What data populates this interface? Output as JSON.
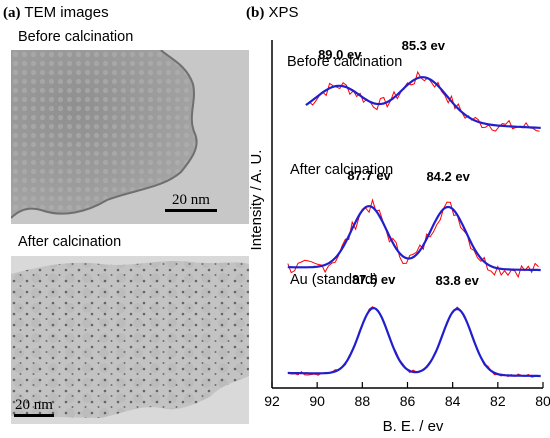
{
  "panel_a": {
    "letter": "(a)",
    "title": "TEM images",
    "top_label": "Before calcination",
    "bottom_label": "After calcination",
    "scalebar_top": "20 nm",
    "scalebar_bottom": "20 nm"
  },
  "panel_b": {
    "letter": "(b)",
    "title": "XPS"
  },
  "chart_data": {
    "type": "line",
    "xlabel": "B. E. / ev",
    "ylabel": "Intensity / A. U.",
    "xlim": [
      92,
      80
    ],
    "x_reversed": true,
    "xticks": [
      92,
      90,
      88,
      86,
      84,
      82,
      80
    ],
    "y_ticks_shown": false,
    "grid": false,
    "colors": {
      "measured": "#ff0000",
      "fit": "#1f1fd0"
    },
    "spectra": [
      {
        "label": "Before calcination",
        "peaks": [
          {
            "x": 89.0,
            "label": "89.0 ev"
          },
          {
            "x": 85.3,
            "label": "85.3 ev"
          }
        ],
        "baseline": 0.4,
        "amplitudes": [
          0.72,
          1.0
        ],
        "width": 1.05,
        "noise": 0.14
      },
      {
        "label": "After calcination",
        "peaks": [
          {
            "x": 87.7,
            "label": "87.7 ev"
          },
          {
            "x": 84.2,
            "label": "84.2 ev"
          }
        ],
        "baseline": 0.12,
        "amplitudes": [
          1.0,
          1.0
        ],
        "width": 0.78,
        "noise": 0.12
      },
      {
        "label": "Au (standard)",
        "peaks": [
          {
            "x": 87.5,
            "label": "87.5 ev"
          },
          {
            "x": 83.8,
            "label": "83.8 ev"
          }
        ],
        "baseline": 0.02,
        "amplitudes": [
          1.0,
          1.0
        ],
        "width": 0.65,
        "noise": 0.03
      }
    ]
  }
}
